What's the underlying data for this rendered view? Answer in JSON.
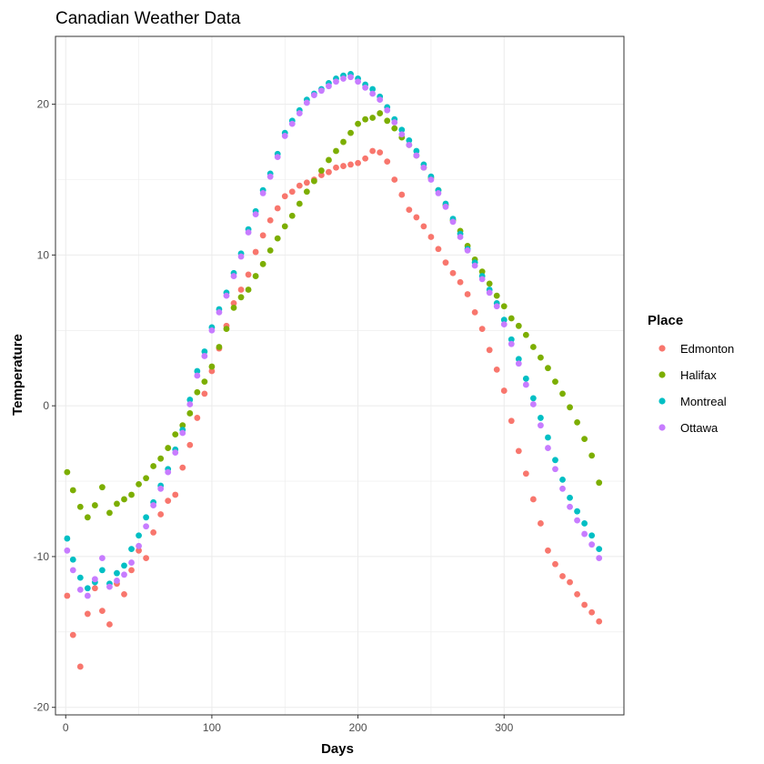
{
  "chart_data": {
    "type": "scatter",
    "title": "Canadian Weather Data",
    "xlabel": "Days",
    "ylabel": "Temperature",
    "xlim": [
      -7,
      382
    ],
    "ylim": [
      -20.5,
      24.5
    ],
    "x_ticks": [
      0,
      100,
      200,
      300
    ],
    "y_ticks": [
      -20,
      -10,
      0,
      10,
      20
    ],
    "grid": true,
    "legend": {
      "title": "Place",
      "position": "right"
    },
    "colors": {
      "Edmonton": "#F8766D",
      "Halifax": "#7CAE00",
      "Montreal": "#00BFC4",
      "Ottawa": "#C77CFF"
    },
    "series": [
      {
        "name": "Edmonton",
        "x": [
          1,
          5,
          10,
          15,
          20,
          25,
          30,
          35,
          40,
          45,
          50,
          55,
          60,
          65,
          70,
          75,
          80,
          85,
          90,
          95,
          100,
          105,
          110,
          115,
          120,
          125,
          130,
          135,
          140,
          145,
          150,
          155,
          160,
          165,
          170,
          175,
          180,
          185,
          190,
          195,
          200,
          205,
          210,
          215,
          220,
          225,
          230,
          235,
          240,
          245,
          250,
          255,
          260,
          265,
          270,
          275,
          280,
          285,
          290,
          295,
          300,
          305,
          310,
          315,
          320,
          325,
          330,
          335,
          340,
          345,
          350,
          355,
          360,
          365
        ],
        "y": [
          -12.6,
          -15.2,
          -17.3,
          -13.8,
          -12.1,
          -13.6,
          -14.5,
          -11.8,
          -12.5,
          -10.9,
          -9.6,
          -10.1,
          -8.4,
          -7.2,
          -6.3,
          -5.9,
          -4.1,
          -2.6,
          -0.8,
          0.8,
          2.3,
          3.8,
          5.3,
          6.8,
          7.7,
          8.7,
          10.2,
          11.3,
          12.3,
          13.1,
          13.9,
          14.2,
          14.6,
          14.8,
          15.0,
          15.3,
          15.5,
          15.8,
          15.9,
          16.0,
          16.1,
          16.4,
          16.9,
          16.8,
          16.2,
          15.0,
          14.0,
          13.0,
          12.5,
          11.9,
          11.2,
          10.4,
          9.5,
          8.8,
          8.2,
          7.4,
          6.2,
          5.1,
          3.7,
          2.4,
          1.0,
          -1.0,
          -3.0,
          -4.5,
          -6.2,
          -7.8,
          -9.6,
          -10.5,
          -11.3,
          -11.7,
          -12.5,
          -13.2,
          -13.7,
          -14.3
        ]
      },
      {
        "name": "Halifax",
        "x": [
          1,
          5,
          10,
          15,
          20,
          25,
          30,
          35,
          40,
          45,
          50,
          55,
          60,
          65,
          70,
          75,
          80,
          85,
          90,
          95,
          100,
          105,
          110,
          115,
          120,
          125,
          130,
          135,
          140,
          145,
          150,
          155,
          160,
          165,
          170,
          175,
          180,
          185,
          190,
          195,
          200,
          205,
          210,
          215,
          220,
          225,
          230,
          235,
          240,
          245,
          250,
          255,
          260,
          265,
          270,
          275,
          280,
          285,
          290,
          295,
          300,
          305,
          310,
          315,
          320,
          325,
          330,
          335,
          340,
          345,
          350,
          355,
          360,
          365
        ],
        "y": [
          -4.4,
          -5.6,
          -6.7,
          -7.4,
          -6.6,
          -5.4,
          -7.1,
          -6.5,
          -6.2,
          -5.9,
          -5.2,
          -4.8,
          -4.0,
          -3.5,
          -2.8,
          -1.9,
          -1.3,
          -0.5,
          0.9,
          1.6,
          2.6,
          3.9,
          5.1,
          6.5,
          7.2,
          7.7,
          8.6,
          9.4,
          10.3,
          11.1,
          11.9,
          12.6,
          13.4,
          14.2,
          14.9,
          15.6,
          16.3,
          16.9,
          17.5,
          18.1,
          18.7,
          19.0,
          19.1,
          19.4,
          18.9,
          18.4,
          17.8,
          17.3,
          16.6,
          15.8,
          15.1,
          14.3,
          13.3,
          12.3,
          11.6,
          10.6,
          9.7,
          8.9,
          8.1,
          7.3,
          6.6,
          5.8,
          5.3,
          4.7,
          3.9,
          3.2,
          2.5,
          1.6,
          0.8,
          -0.1,
          -1.1,
          -2.2,
          -3.3,
          -5.1
        ]
      },
      {
        "name": "Montreal",
        "x": [
          1,
          5,
          10,
          15,
          20,
          25,
          30,
          35,
          40,
          45,
          50,
          55,
          60,
          65,
          70,
          75,
          80,
          85,
          90,
          95,
          100,
          105,
          110,
          115,
          120,
          125,
          130,
          135,
          140,
          145,
          150,
          155,
          160,
          165,
          170,
          175,
          180,
          185,
          190,
          195,
          200,
          205,
          210,
          215,
          220,
          225,
          230,
          235,
          240,
          245,
          250,
          255,
          260,
          265,
          270,
          275,
          280,
          285,
          290,
          295,
          300,
          305,
          310,
          315,
          320,
          325,
          330,
          335,
          340,
          345,
          350,
          355,
          360,
          365
        ],
        "y": [
          -8.8,
          -10.2,
          -11.4,
          -12.1,
          -11.7,
          -10.9,
          -11.8,
          -11.1,
          -10.6,
          -9.5,
          -8.6,
          -7.4,
          -6.4,
          -5.3,
          -4.2,
          -2.9,
          -1.6,
          0.4,
          2.3,
          3.6,
          5.2,
          6.4,
          7.5,
          8.8,
          10.1,
          11.7,
          12.9,
          14.3,
          15.4,
          16.7,
          18.1,
          18.9,
          19.6,
          20.3,
          20.7,
          21.0,
          21.4,
          21.7,
          21.9,
          22.0,
          21.7,
          21.3,
          21.0,
          20.5,
          19.8,
          19.0,
          18.3,
          17.6,
          16.9,
          16.0,
          15.2,
          14.3,
          13.4,
          12.4,
          11.4,
          10.4,
          9.5,
          8.6,
          7.7,
          6.8,
          5.7,
          4.4,
          3.1,
          1.8,
          0.5,
          -0.8,
          -2.1,
          -3.6,
          -4.9,
          -6.1,
          -7.0,
          -7.8,
          -8.6,
          -9.5
        ]
      },
      {
        "name": "Ottawa",
        "x": [
          1,
          5,
          10,
          15,
          20,
          25,
          30,
          35,
          40,
          45,
          50,
          55,
          60,
          65,
          70,
          75,
          80,
          85,
          90,
          95,
          100,
          105,
          110,
          115,
          120,
          125,
          130,
          135,
          140,
          145,
          150,
          155,
          160,
          165,
          170,
          175,
          180,
          185,
          190,
          195,
          200,
          205,
          210,
          215,
          220,
          225,
          230,
          235,
          240,
          245,
          250,
          255,
          260,
          265,
          270,
          275,
          280,
          285,
          290,
          295,
          300,
          305,
          310,
          315,
          320,
          325,
          330,
          335,
          340,
          345,
          350,
          355,
          360,
          365
        ],
        "y": [
          -9.6,
          -10.9,
          -12.2,
          -12.6,
          -11.5,
          -10.1,
          -12.0,
          -11.6,
          -11.2,
          -10.4,
          -9.3,
          -8.0,
          -6.6,
          -5.5,
          -4.4,
          -3.1,
          -1.8,
          0.1,
          2.0,
          3.3,
          5.0,
          6.2,
          7.3,
          8.6,
          9.9,
          11.5,
          12.7,
          14.1,
          15.2,
          16.5,
          17.9,
          18.7,
          19.4,
          20.1,
          20.6,
          20.9,
          21.2,
          21.5,
          21.7,
          21.8,
          21.5,
          21.1,
          20.7,
          20.3,
          19.6,
          18.8,
          18.0,
          17.3,
          16.6,
          15.8,
          15.0,
          14.1,
          13.2,
          12.2,
          11.2,
          10.3,
          9.3,
          8.4,
          7.5,
          6.6,
          5.4,
          4.1,
          2.8,
          1.4,
          0.1,
          -1.3,
          -2.8,
          -4.2,
          -5.5,
          -6.7,
          -7.6,
          -8.5,
          -9.2,
          -10.1
        ]
      }
    ]
  }
}
